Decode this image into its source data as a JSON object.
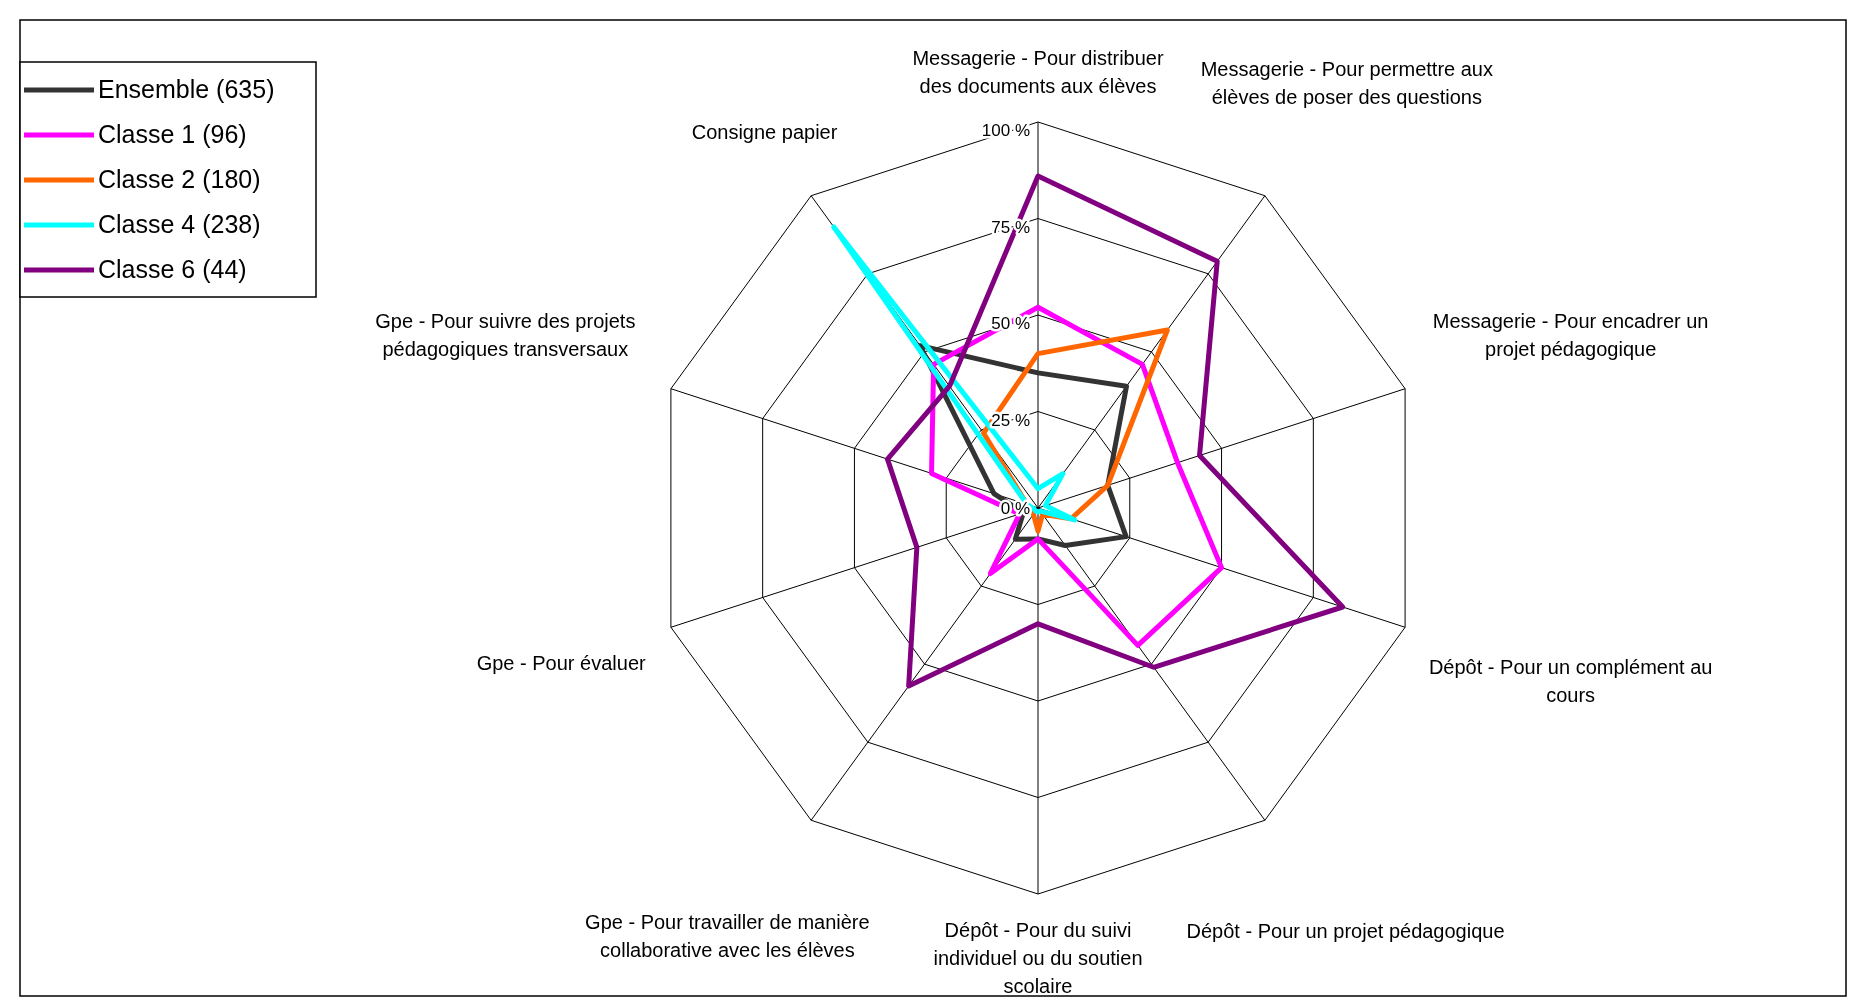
{
  "chart_data": {
    "type": "radar",
    "categories": [
      "Messagerie - Pour distribuer des documents aux élèves",
      "Messagerie - Pour permettre aux élèves de poser des questions",
      "Messagerie - Pour encadrer un projet pédagogique",
      "Dépôt - Pour un complément au cours",
      "Dépôt - Pour un projet pédagogique",
      "Dépôt - Pour du suivi individuel ou du soutien scolaire",
      "Gpe - Pour travailler de manière collaborative avec les élèves",
      "Gpe - Pour évaluer",
      "Gpe - Pour suivre des projets pédagogiques transversaux",
      "Consigne papier"
    ],
    "ylim": [
      0,
      100
    ],
    "yticks": [
      {
        "value": 0,
        "label": "0 %"
      },
      {
        "value": 25,
        "label": "25 %"
      },
      {
        "value": 50,
        "label": "50 %"
      },
      {
        "value": 75,
        "label": "75 %"
      },
      {
        "value": 100,
        "label": "100 %"
      }
    ],
    "grid": true,
    "legend": "top left",
    "series": [
      {
        "name": "Ensemble (635)",
        "color": "#333333",
        "values": [
          35,
          39,
          19,
          24,
          12,
          8,
          10,
          4,
          12,
          52
        ]
      },
      {
        "name": "Classe 1 (96)",
        "color": "#ff00ff",
        "values": [
          52,
          46,
          38,
          50,
          44,
          8,
          21,
          5,
          29,
          46
        ]
      },
      {
        "name": "Classe 2 (180)",
        "color": "#ff6600",
        "values": [
          40,
          57,
          19,
          9,
          2,
          6,
          2,
          2,
          3,
          24
        ]
      },
      {
        "name": "Classe 4 (238)",
        "color": "#00ffff",
        "values": [
          5,
          11,
          2,
          10,
          1,
          1,
          1,
          1,
          3,
          90
        ]
      },
      {
        "name": "Classe 6 (44)",
        "color": "#800080",
        "values": [
          86,
          79,
          44,
          83,
          51,
          30,
          57,
          33,
          41,
          39
        ]
      }
    ]
  }
}
